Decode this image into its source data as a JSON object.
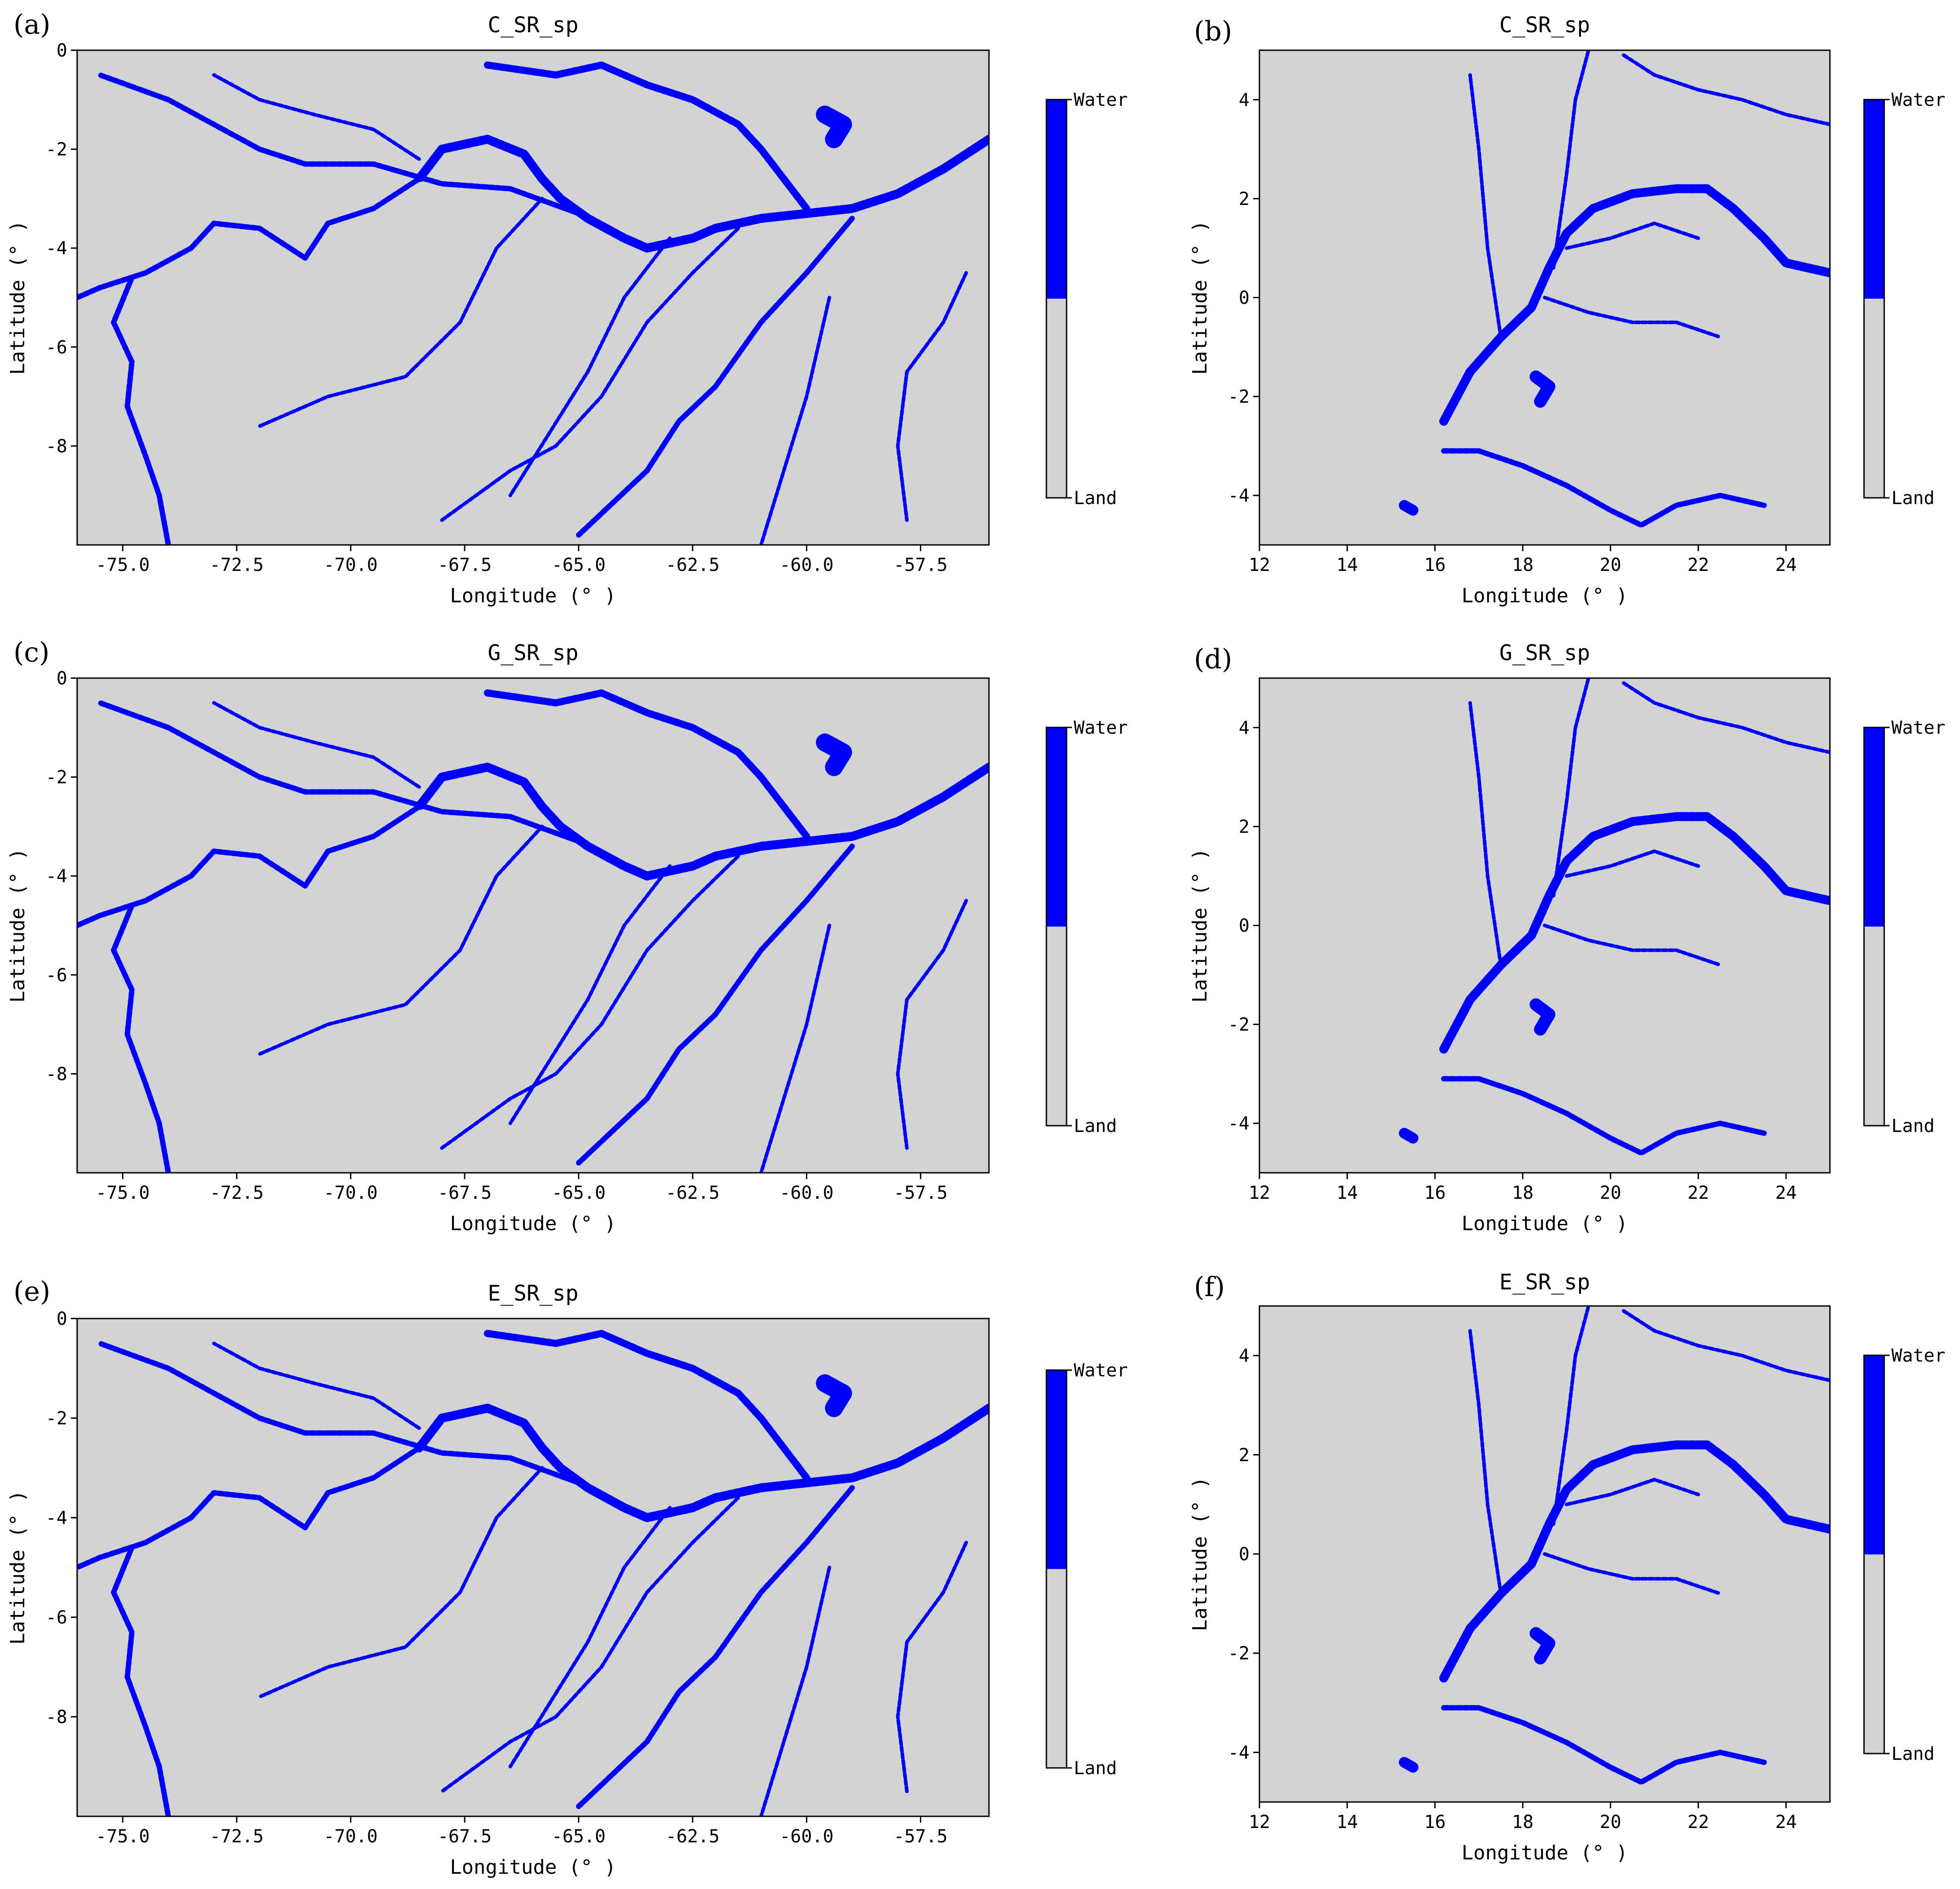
{
  "colors": {
    "water": "#0000ff",
    "land": "#d3d3d3",
    "axis": "#000000"
  },
  "legend": {
    "water_label": "Water",
    "land_label": "Land"
  },
  "panels": [
    {
      "letter": "(a)",
      "title": "C_SR_sp",
      "region": "amazon",
      "xlabel": "Longitude (° )",
      "ylabel": "Latitude (° )",
      "xlim": [
        -76.0,
        -56.0
      ],
      "ylim": [
        -10.0,
        0.0
      ],
      "xticks": [
        -75.0,
        -72.5,
        -70.0,
        -67.5,
        -65.0,
        -62.5,
        -60.0,
        -57.5
      ],
      "xtick_labels": [
        "-75.0",
        "-72.5",
        "-70.0",
        "-67.5",
        "-65.0",
        "-62.5",
        "-60.0",
        "-57.5"
      ],
      "yticks": [
        0,
        -2,
        -4,
        -6,
        -8
      ],
      "ytick_labels": [
        "0",
        "-2",
        "-4",
        "-6",
        "-8"
      ]
    },
    {
      "letter": "(b)",
      "title": "C_SR_sp",
      "region": "congo",
      "xlabel": "Longitude (° )",
      "ylabel": "Latitude (° )",
      "xlim": [
        12.0,
        25.0
      ],
      "ylim": [
        -5.0,
        5.0
      ],
      "xticks": [
        12,
        14,
        16,
        18,
        20,
        22,
        24
      ],
      "xtick_labels": [
        "12",
        "14",
        "16",
        "18",
        "20",
        "22",
        "24"
      ],
      "yticks": [
        4,
        2,
        0,
        -2,
        -4
      ],
      "ytick_labels": [
        "4",
        "2",
        "0",
        "-2",
        "-4"
      ]
    },
    {
      "letter": "(c)",
      "title": "G_SR_sp",
      "region": "amazon",
      "xlabel": "Longitude (° )",
      "ylabel": "Latitude (° )",
      "xlim": [
        -76.0,
        -56.0
      ],
      "ylim": [
        -10.0,
        0.0
      ],
      "xticks": [
        -75.0,
        -72.5,
        -70.0,
        -67.5,
        -65.0,
        -62.5,
        -60.0,
        -57.5
      ],
      "xtick_labels": [
        "-75.0",
        "-72.5",
        "-70.0",
        "-67.5",
        "-65.0",
        "-62.5",
        "-60.0",
        "-57.5"
      ],
      "yticks": [
        0,
        -2,
        -4,
        -6,
        -8
      ],
      "ytick_labels": [
        "0",
        "-2",
        "-4",
        "-6",
        "-8"
      ]
    },
    {
      "letter": "(d)",
      "title": "G_SR_sp",
      "region": "congo",
      "xlabel": "Longitude (° )",
      "ylabel": "Latitude (° )",
      "xlim": [
        12.0,
        25.0
      ],
      "ylim": [
        -5.0,
        5.0
      ],
      "xticks": [
        12,
        14,
        16,
        18,
        20,
        22,
        24
      ],
      "xtick_labels": [
        "12",
        "14",
        "16",
        "18",
        "20",
        "22",
        "24"
      ],
      "yticks": [
        4,
        2,
        0,
        -2,
        -4
      ],
      "ytick_labels": [
        "4",
        "2",
        "0",
        "-2",
        "-4"
      ]
    },
    {
      "letter": "(e)",
      "title": "E_SR_sp",
      "region": "amazon",
      "xlabel": "Longitude (° )",
      "ylabel": "Latitude (° )",
      "xlim": [
        -76.0,
        -56.0
      ],
      "ylim": [
        -10.0,
        0.0
      ],
      "xticks": [
        -75.0,
        -72.5,
        -70.0,
        -67.5,
        -65.0,
        -62.5,
        -60.0,
        -57.5
      ],
      "xtick_labels": [
        "-75.0",
        "-72.5",
        "-70.0",
        "-67.5",
        "-65.0",
        "-62.5",
        "-60.0",
        "-57.5"
      ],
      "yticks": [
        0,
        -2,
        -4,
        -6,
        -8
      ],
      "ytick_labels": [
        "0",
        "-2",
        "-4",
        "-6",
        "-8"
      ]
    },
    {
      "letter": "(f)",
      "title": "E_SR_sp",
      "region": "congo",
      "xlabel": "Longitude (° )",
      "ylabel": "Latitude (° )",
      "xlim": [
        12.0,
        25.0
      ],
      "ylim": [
        -5.0,
        5.0
      ],
      "xticks": [
        12,
        14,
        16,
        18,
        20,
        22,
        24
      ],
      "xtick_labels": [
        "12",
        "14",
        "16",
        "18",
        "20",
        "22",
        "24"
      ],
      "yticks": [
        4,
        2,
        0,
        -2,
        -4
      ],
      "ytick_labels": [
        "4",
        "2",
        "0",
        "-2",
        "-4"
      ]
    }
  ],
  "water_features": {
    "amazon": [
      {
        "name": "amazon-main-channel",
        "weight": 5,
        "pts": [
          [
            -56.0,
            -1.8
          ],
          [
            -57.0,
            -2.4
          ],
          [
            -58.0,
            -2.9
          ],
          [
            -59.0,
            -3.2
          ],
          [
            -60.0,
            -3.3
          ],
          [
            -61.0,
            -3.4
          ],
          [
            -62.0,
            -3.6
          ],
          [
            -62.5,
            -3.8
          ],
          [
            -63.5,
            -4.0
          ],
          [
            -64.0,
            -3.8
          ],
          [
            -64.8,
            -3.4
          ],
          [
            -65.4,
            -3.0
          ],
          [
            -65.8,
            -2.6
          ],
          [
            -66.2,
            -2.1
          ],
          [
            -67.0,
            -1.8
          ],
          [
            -68.0,
            -2.0
          ],
          [
            -68.5,
            -2.6
          ]
        ]
      },
      {
        "name": "solimoes-upper",
        "weight": 3,
        "pts": [
          [
            -68.5,
            -2.6
          ],
          [
            -69.5,
            -3.2
          ],
          [
            -70.5,
            -3.5
          ],
          [
            -71.0,
            -4.2
          ],
          [
            -72.0,
            -3.6
          ],
          [
            -73.0,
            -3.5
          ],
          [
            -73.5,
            -4.0
          ],
          [
            -74.5,
            -4.5
          ],
          [
            -75.5,
            -4.8
          ],
          [
            -76.0,
            -5.0
          ]
        ]
      },
      {
        "name": "japura-river",
        "weight": 3,
        "pts": [
          [
            -64.0,
            -3.8
          ],
          [
            -65.0,
            -3.3
          ],
          [
            -66.5,
            -2.8
          ],
          [
            -68.0,
            -2.7
          ],
          [
            -69.5,
            -2.3
          ],
          [
            -71.0,
            -2.3
          ],
          [
            -72.0,
            -2.0
          ],
          [
            -73.0,
            -1.5
          ],
          [
            -74.0,
            -1.0
          ],
          [
            -75.5,
            -0.5
          ]
        ]
      },
      {
        "name": "negro-river",
        "weight": 4,
        "pts": [
          [
            -60.0,
            -3.2
          ],
          [
            -60.5,
            -2.6
          ],
          [
            -61.0,
            -2.0
          ],
          [
            -61.5,
            -1.5
          ],
          [
            -62.5,
            -1.0
          ],
          [
            -63.5,
            -0.7
          ],
          [
            -64.5,
            -0.3
          ],
          [
            -65.5,
            -0.5
          ],
          [
            -67.0,
            -0.3
          ]
        ]
      },
      {
        "name": "ucayali-river",
        "weight": 3,
        "pts": [
          [
            -74.8,
            -4.6
          ],
          [
            -75.2,
            -5.5
          ],
          [
            -74.8,
            -6.3
          ],
          [
            -74.9,
            -7.2
          ],
          [
            -74.5,
            -8.2
          ],
          [
            -74.2,
            -9.0
          ],
          [
            -74.0,
            -10.0
          ]
        ]
      },
      {
        "name": "jurua-river",
        "weight": 2,
        "pts": [
          [
            -65.8,
            -3.0
          ],
          [
            -66.8,
            -4.0
          ],
          [
            -67.6,
            -5.5
          ],
          [
            -68.8,
            -6.6
          ],
          [
            -70.5,
            -7.0
          ],
          [
            -72.0,
            -7.6
          ]
        ]
      },
      {
        "name": "purus-river",
        "weight": 2,
        "pts": [
          [
            -61.5,
            -3.6
          ],
          [
            -62.5,
            -4.5
          ],
          [
            -63.5,
            -5.5
          ],
          [
            -64.5,
            -7.0
          ],
          [
            -65.5,
            -8.0
          ],
          [
            -66.5,
            -8.5
          ],
          [
            -68.0,
            -9.5
          ]
        ]
      },
      {
        "name": "madeira-river",
        "weight": 3,
        "pts": [
          [
            -59.0,
            -3.4
          ],
          [
            -60.0,
            -4.5
          ],
          [
            -61.0,
            -5.5
          ],
          [
            -62.0,
            -6.8
          ],
          [
            -62.8,
            -7.5
          ],
          [
            -63.5,
            -8.5
          ],
          [
            -65.0,
            -9.8
          ]
        ]
      },
      {
        "name": "tapajos-river",
        "weight": 2,
        "pts": [
          [
            -56.5,
            -4.5
          ],
          [
            -57.0,
            -5.5
          ],
          [
            -57.8,
            -6.5
          ],
          [
            -58.0,
            -8.0
          ],
          [
            -57.8,
            -9.5
          ]
        ]
      },
      {
        "name": "aripuana-river",
        "weight": 2,
        "pts": [
          [
            -59.5,
            -5.0
          ],
          [
            -60.0,
            -7.0
          ],
          [
            -60.5,
            -8.5
          ],
          [
            -61.0,
            -10.0
          ]
        ]
      },
      {
        "name": "coari-river",
        "weight": 2,
        "pts": [
          [
            -63.0,
            -3.8
          ],
          [
            -64.0,
            -5.0
          ],
          [
            -64.8,
            -6.5
          ],
          [
            -66.5,
            -9.0
          ]
        ]
      },
      {
        "name": "ica-river",
        "weight": 2,
        "pts": [
          [
            -68.5,
            -2.2
          ],
          [
            -69.5,
            -1.6
          ],
          [
            -70.8,
            -1.3
          ],
          [
            -72.0,
            -1.0
          ],
          [
            -73.0,
            -0.5
          ]
        ]
      },
      {
        "name": "lake-patch",
        "weight": 10,
        "pts": [
          [
            -59.6,
            -1.3
          ],
          [
            -59.2,
            -1.5
          ],
          [
            -59.4,
            -1.8
          ]
        ]
      }
    ],
    "congo": [
      {
        "name": "congo-main-channel",
        "weight": 5,
        "pts": [
          [
            16.2,
            -2.5
          ],
          [
            16.8,
            -1.5
          ],
          [
            17.5,
            -0.8
          ],
          [
            18.2,
            -0.2
          ],
          [
            18.6,
            0.6
          ],
          [
            19.0,
            1.3
          ],
          [
            19.6,
            1.8
          ],
          [
            20.5,
            2.1
          ],
          [
            21.5,
            2.2
          ],
          [
            22.2,
            2.2
          ],
          [
            22.8,
            1.8
          ],
          [
            23.5,
            1.2
          ],
          [
            24.0,
            0.7
          ],
          [
            25.0,
            0.5
          ]
        ]
      },
      {
        "name": "kasai-river",
        "weight": 3,
        "pts": [
          [
            16.2,
            -3.1
          ],
          [
            17.0,
            -3.1
          ],
          [
            18.0,
            -3.4
          ],
          [
            19.0,
            -3.8
          ],
          [
            20.0,
            -4.3
          ],
          [
            20.7,
            -4.6
          ],
          [
            21.5,
            -4.2
          ],
          [
            22.5,
            -4.0
          ],
          [
            23.5,
            -4.2
          ]
        ]
      },
      {
        "name": "ubangi-river",
        "weight": 2,
        "pts": [
          [
            18.7,
            0.6
          ],
          [
            19.0,
            2.5
          ],
          [
            19.2,
            4.0
          ],
          [
            19.5,
            5.0
          ]
        ]
      },
      {
        "name": "northern-river",
        "weight": 2,
        "pts": [
          [
            20.3,
            4.9
          ],
          [
            21.0,
            4.5
          ],
          [
            22.0,
            4.2
          ],
          [
            23.0,
            4.0
          ],
          [
            24.0,
            3.7
          ],
          [
            25.0,
            3.5
          ]
        ]
      },
      {
        "name": "busira-river",
        "weight": 2,
        "pts": [
          [
            18.5,
            0.0
          ],
          [
            19.5,
            -0.3
          ],
          [
            20.5,
            -0.5
          ],
          [
            21.5,
            -0.5
          ],
          [
            22.5,
            -0.8
          ]
        ]
      },
      {
        "name": "sangha-river",
        "weight": 2,
        "pts": [
          [
            17.5,
            -0.8
          ],
          [
            17.2,
            1.0
          ],
          [
            17.0,
            3.0
          ],
          [
            16.8,
            4.5
          ]
        ]
      },
      {
        "name": "lulonga-river",
        "weight": 2,
        "pts": [
          [
            19.0,
            1.0
          ],
          [
            20.0,
            1.2
          ],
          [
            21.0,
            1.5
          ],
          [
            22.0,
            1.2
          ]
        ]
      },
      {
        "name": "mai-ndombe-lake",
        "weight": 7,
        "pts": [
          [
            18.3,
            -1.6
          ],
          [
            18.6,
            -1.8
          ],
          [
            18.4,
            -2.1
          ]
        ]
      },
      {
        "name": "lake-tumba",
        "weight": 6,
        "pts": [
          [
            15.3,
            -4.2
          ],
          [
            15.5,
            -4.3
          ]
        ]
      }
    ]
  }
}
